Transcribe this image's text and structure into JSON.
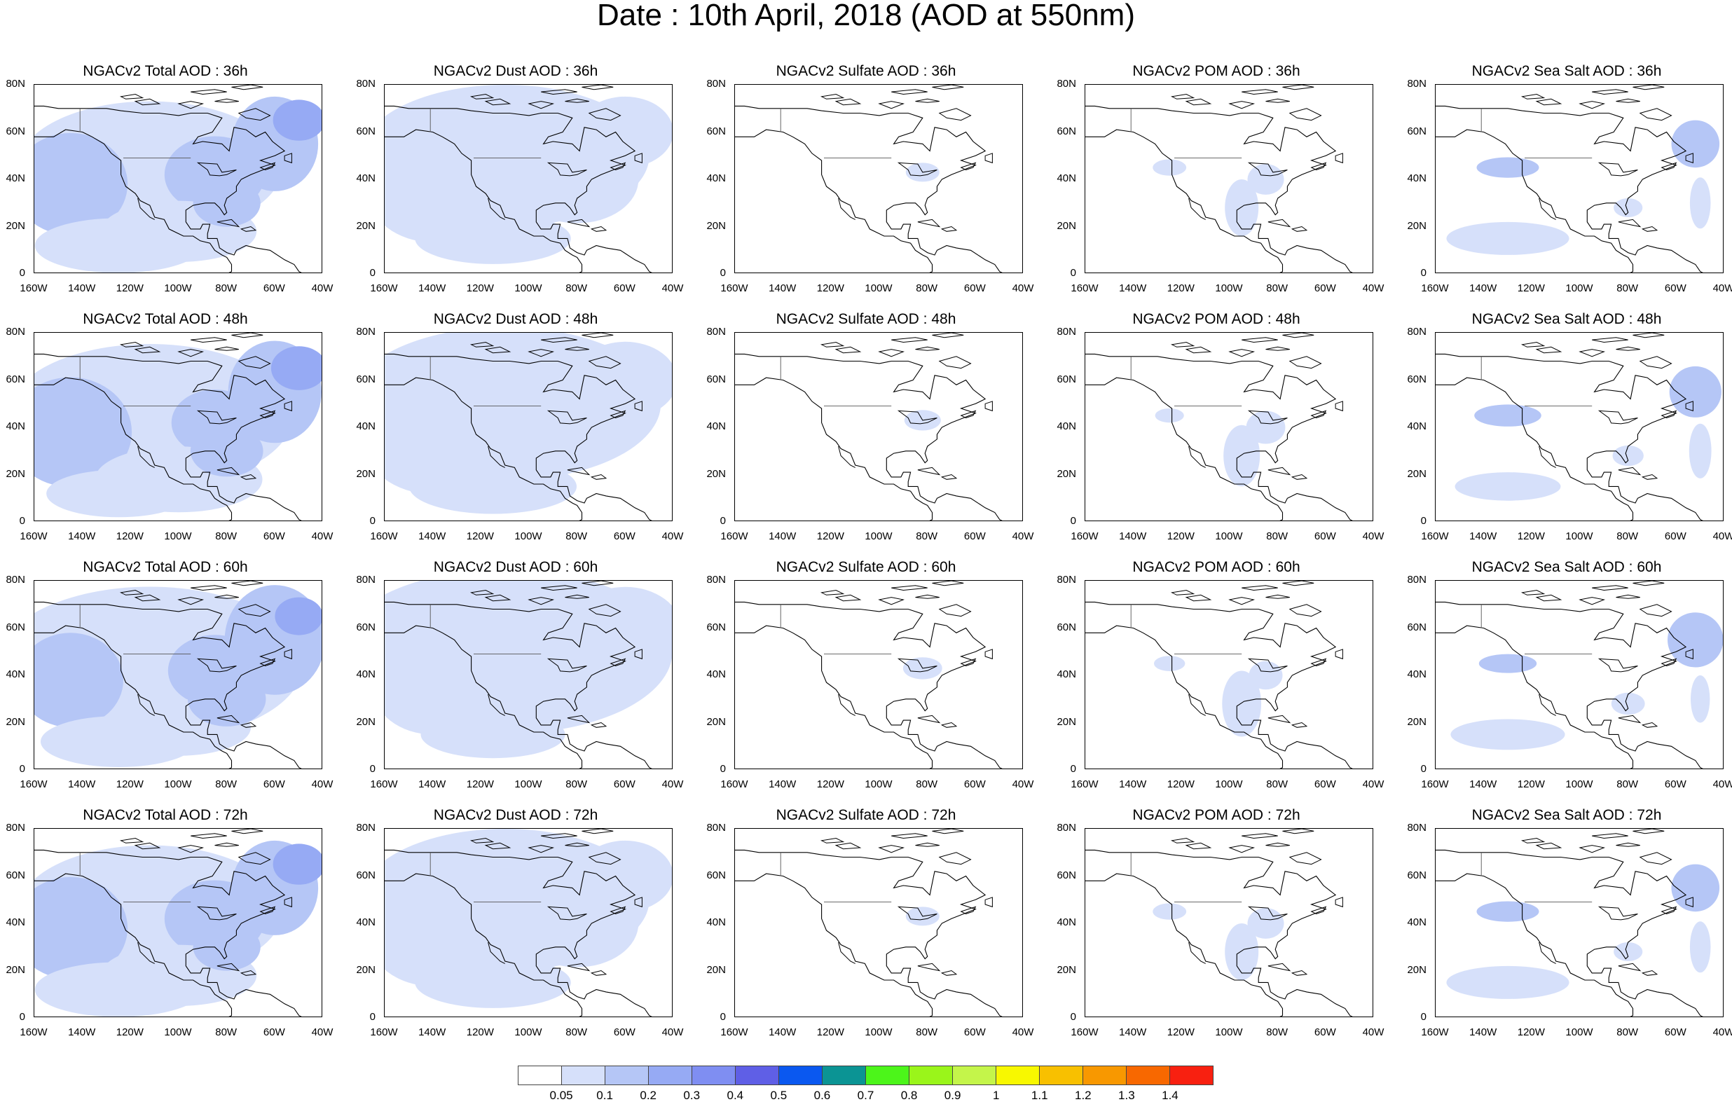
{
  "title": "Date : 10th April, 2018 (AOD at 550nm)",
  "y_tick_labels": [
    "80N",
    "60N",
    "40N",
    "20N",
    "0"
  ],
  "x_tick_labels": [
    "160W",
    "140W",
    "120W",
    "100W",
    "80W",
    "60W",
    "40W"
  ],
  "panels": [
    [
      "NGACv2 Total AOD : 36h",
      "NGACv2 Dust AOD : 36h",
      "NGACv2 Sulfate AOD : 36h",
      "NGACv2 POM AOD : 36h",
      "NGACv2 Sea Salt AOD : 36h"
    ],
    [
      "NGACv2 Total AOD : 48h",
      "NGACv2 Dust AOD : 48h",
      "NGACv2 Sulfate AOD : 48h",
      "NGACv2 POM AOD : 48h",
      "NGACv2 Sea Salt AOD : 48h"
    ],
    [
      "NGACv2 Total AOD : 60h",
      "NGACv2 Dust AOD : 60h",
      "NGACv2 Sulfate AOD : 60h",
      "NGACv2 POM AOD : 60h",
      "NGACv2 Sea Salt AOD : 60h"
    ],
    [
      "NGACv2 Total AOD : 72h",
      "NGACv2 Dust AOD : 72h",
      "NGACv2 Sulfate AOD : 72h",
      "NGACv2 POM AOD : 72h",
      "NGACv2 Sea Salt  AOD : 72h"
    ]
  ],
  "colorbar": {
    "colors": [
      "#ffffff",
      "#d6e0fa",
      "#b5c6f6",
      "#96aaf4",
      "#7f8ef2",
      "#5f5fe6",
      "#0a58f0",
      "#0b9494",
      "#4cf51a",
      "#9af51a",
      "#c4f54a",
      "#f8f800",
      "#f8c000",
      "#f89800",
      "#f86800",
      "#f82010"
    ],
    "labels": [
      "0.05",
      "0.1",
      "0.2",
      "0.3",
      "0.4",
      "0.5",
      "0.6",
      "0.7",
      "0.8",
      "0.9",
      "1",
      "1.1",
      "1.2",
      "1.3",
      "1.4"
    ]
  },
  "fill_colors": {
    "light": "#d6e0fa",
    "medium": "#b5c6f6",
    "dark": "#96aaf4"
  }
}
